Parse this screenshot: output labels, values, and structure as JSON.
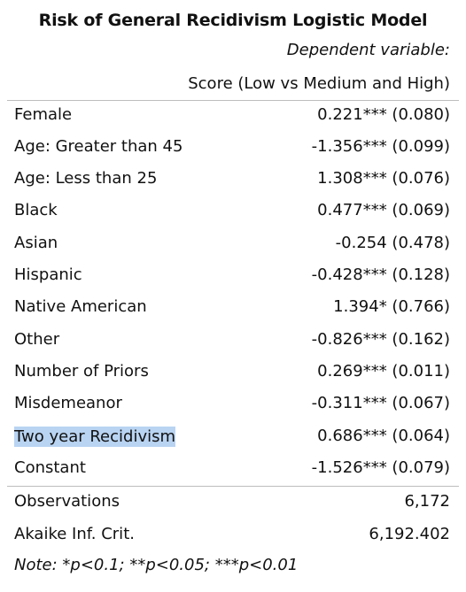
{
  "table": {
    "title": "Risk of General Recidivism Logistic Model",
    "dependent_label": "Dependent variable:",
    "score_label": "Score (Low vs Medium and High)",
    "rows": [
      {
        "name": "Female",
        "value": "0.221*** (0.080)"
      },
      {
        "name": "Age: Greater than 45",
        "value": "-1.356*** (0.099)"
      },
      {
        "name": "Age: Less than 25",
        "value": "1.308*** (0.076)"
      },
      {
        "name": "Black",
        "value": "0.477*** (0.069)"
      },
      {
        "name": "Asian",
        "value": "-0.254 (0.478)"
      },
      {
        "name": "Hispanic",
        "value": "-0.428*** (0.128)"
      },
      {
        "name": "Native American",
        "value": "1.394* (0.766)"
      },
      {
        "name": "Other",
        "value": "-0.826*** (0.162)"
      },
      {
        "name": "Number of Priors",
        "value": "0.269*** (0.011)"
      },
      {
        "name": "Misdemeanor",
        "value": "-0.311*** (0.067)"
      },
      {
        "name": "Two year Recidivism",
        "value": "0.686*** (0.064)",
        "highlighted": true
      },
      {
        "name": "Constant",
        "value": "-1.526*** (0.079)"
      }
    ],
    "stats": [
      {
        "name": "Observations",
        "value": "6,172"
      },
      {
        "name": "Akaike Inf. Crit.",
        "value": "6,192.402"
      }
    ],
    "note": "Note: *p<0.1; **p<0.05; ***p<0.01"
  }
}
